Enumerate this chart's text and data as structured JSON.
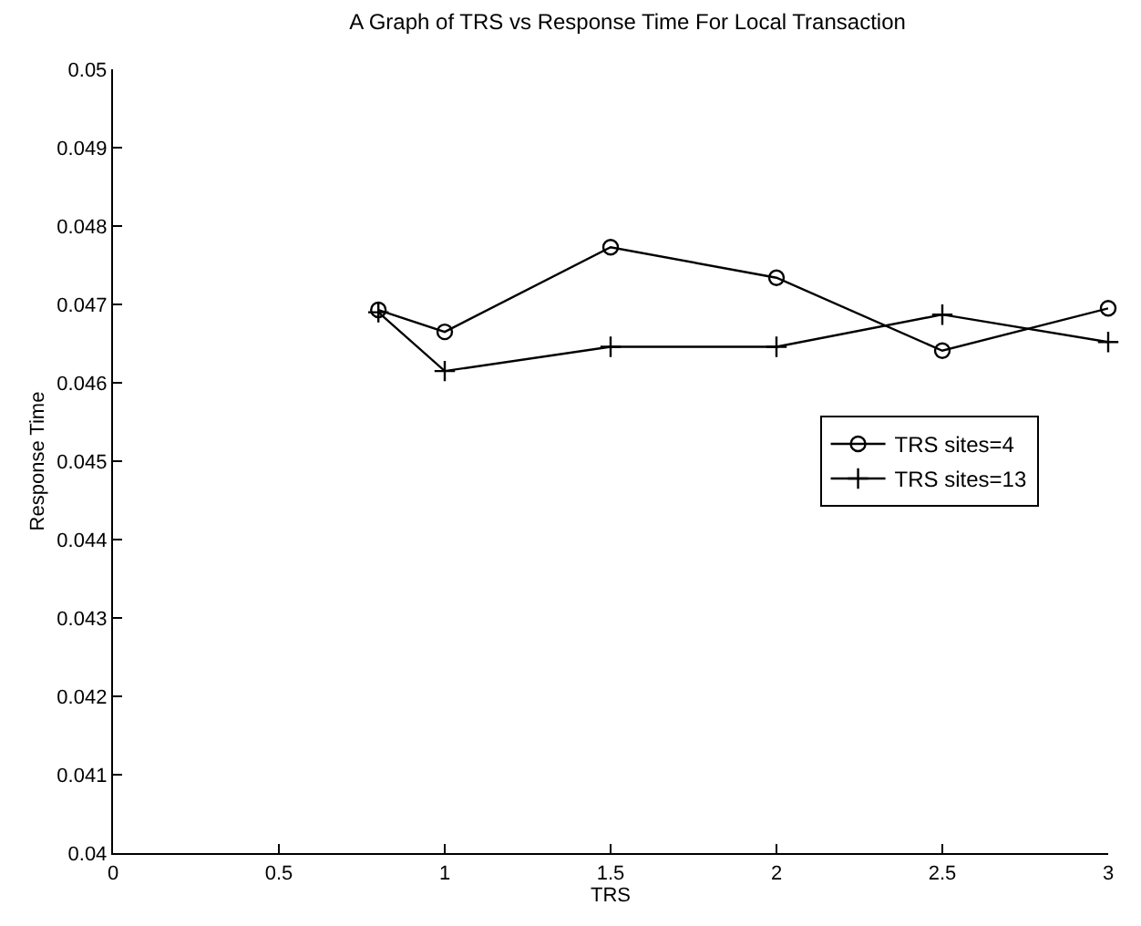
{
  "chart_data": {
    "type": "line",
    "title": "A Graph of TRS vs Response Time For Local Transaction",
    "xlabel": "TRS",
    "ylabel": "Response Time",
    "x": [
      0.8,
      1,
      1.5,
      2,
      2.5,
      3
    ],
    "series": [
      {
        "name": "TRS sites=4",
        "color": "#000000",
        "marker": "circle",
        "values": [
          0.04693,
          0.04665,
          0.04773,
          0.04734,
          0.04641,
          0.04695
        ]
      },
      {
        "name": "TRS sites=13",
        "color": "#000000",
        "marker": "cross",
        "values": [
          0.0469,
          0.04615,
          0.04646,
          0.04646,
          0.04687,
          0.04652
        ]
      }
    ],
    "xlim": [
      0,
      3
    ],
    "ylim": [
      0.04,
      0.05
    ],
    "xticks": [
      0,
      0.5,
      1,
      1.5,
      2,
      2.5,
      3
    ],
    "yticks": [
      0.04,
      0.041,
      0.042,
      0.043,
      0.044,
      0.045,
      0.046,
      0.047,
      0.048,
      0.049,
      0.05
    ],
    "legend": "right",
    "line_style": "solid"
  }
}
